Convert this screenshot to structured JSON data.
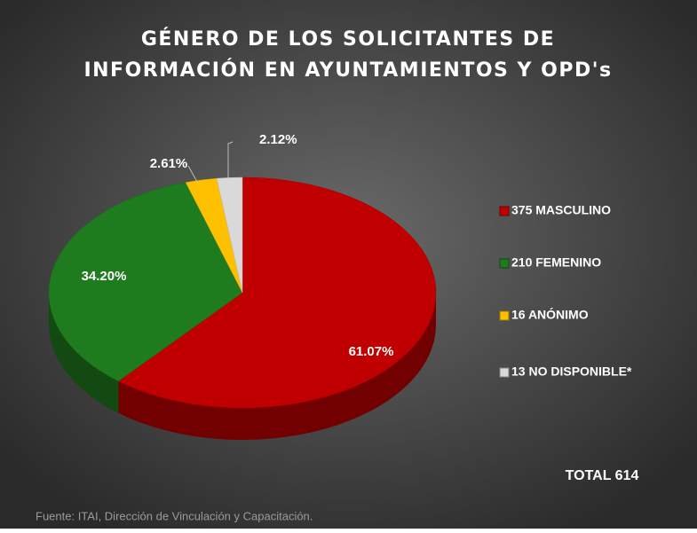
{
  "chart_data": {
    "type": "pie",
    "title": [
      "GÉNERO DE LOS SOLICITANTES DE",
      "INFORMACIÓN EN AYUNTAMIENTOS Y OPD's"
    ],
    "categories": [
      "375 MASCULINO",
      "210 FEMENINO",
      "16 ANÓNIMO",
      "13 NO DISPONIBLE*"
    ],
    "values": [
      61.07,
      34.2,
      2.61,
      2.12
    ],
    "value_labels": [
      "61.07%",
      "34.20%",
      "2.61%",
      "2.12%"
    ],
    "colors": [
      "#c00000",
      "#1e7b1e",
      "#ffc000",
      "#d9d9d9"
    ],
    "annotations": [
      "TOTAL 614"
    ],
    "source": "Fuente: ITAI, Dirección de Vinculación y Capacitación."
  }
}
